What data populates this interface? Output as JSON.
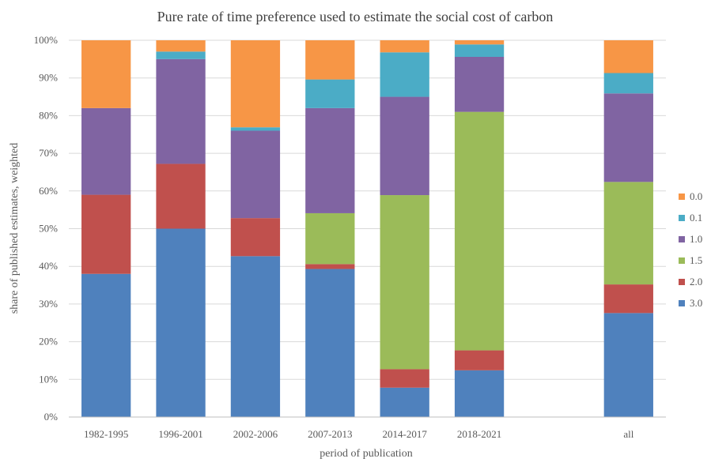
{
  "chart_data": {
    "type": "bar",
    "stacked": true,
    "title": "Pure rate of time preference used to estimate the social cost of carbon",
    "xlabel": "period of publication",
    "ylabel": "share of published estimates, weighted",
    "ylim": [
      0,
      100
    ],
    "yticks": [
      "0%",
      "10%",
      "20%",
      "30%",
      "40%",
      "50%",
      "60%",
      "70%",
      "80%",
      "90%",
      "100%"
    ],
    "categories": [
      "1982-1995",
      "1996-2001",
      "2002-2006",
      "2007-2013",
      "2014-2017",
      "2018-2021",
      "",
      "all"
    ],
    "series": [
      {
        "name": "3.0",
        "color": "#4f81bd",
        "values": [
          38,
          50,
          42.7,
          39.3,
          7.8,
          12.4,
          0,
          27.6
        ]
      },
      {
        "name": "2.0",
        "color": "#c0504d",
        "values": [
          21,
          17.2,
          10.1,
          1.3,
          4.9,
          5.3,
          0,
          7.6
        ]
      },
      {
        "name": "1.5",
        "color": "#9bbb59",
        "values": [
          0,
          0,
          0,
          13.5,
          46.2,
          63.3,
          0,
          27.2
        ]
      },
      {
        "name": "1.0",
        "color": "#8064a2",
        "values": [
          23,
          27.8,
          23.2,
          27.9,
          26.1,
          14.6,
          0,
          23.5
        ]
      },
      {
        "name": "0.1",
        "color": "#4bacc6",
        "values": [
          0,
          2,
          0.9,
          7.6,
          11.8,
          3.3,
          0,
          5.4
        ]
      },
      {
        "name": "0.0",
        "color": "#f79646",
        "values": [
          18,
          3,
          23.1,
          10.4,
          3.2,
          1.1,
          0,
          8.7
        ]
      }
    ],
    "legend_position": "right",
    "grid": true
  }
}
